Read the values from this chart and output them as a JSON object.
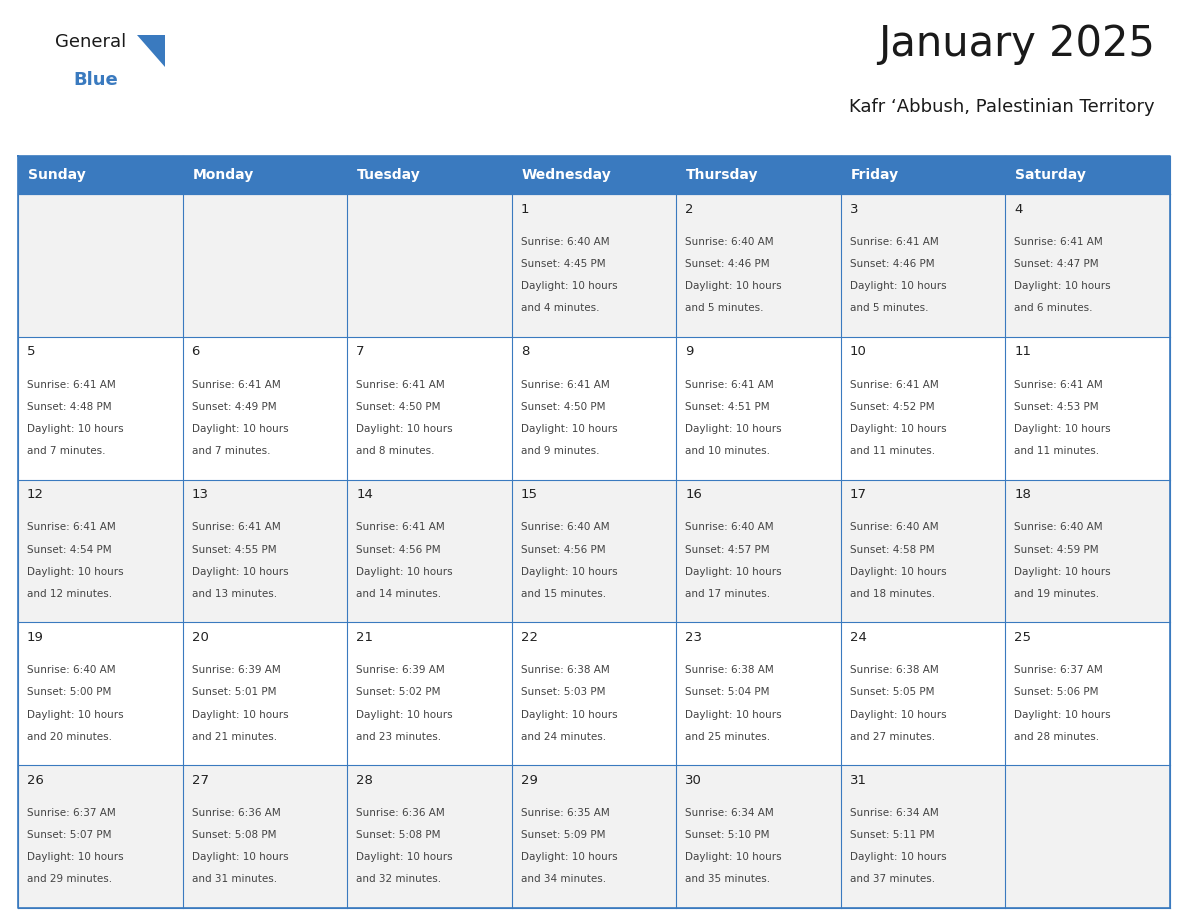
{
  "title": "January 2025",
  "subtitle": "Kafr ‘Abbush, Palestinian Territory",
  "header_color": "#3a7abf",
  "header_text_color": "#ffffff",
  "row0_bg": "#f2f2f2",
  "row1_bg": "#ffffff",
  "border_color": "#3a7abf",
  "text_color": "#444444",
  "day_num_color": "#222222",
  "day_headers": [
    "Sunday",
    "Monday",
    "Tuesday",
    "Wednesday",
    "Thursday",
    "Friday",
    "Saturday"
  ],
  "days_data": [
    {
      "day": 1,
      "col": 3,
      "row": 0,
      "sunrise": "6:40 AM",
      "sunset": "4:45 PM",
      "dl1": "Daylight: 10 hours",
      "dl2": "and 4 minutes."
    },
    {
      "day": 2,
      "col": 4,
      "row": 0,
      "sunrise": "6:40 AM",
      "sunset": "4:46 PM",
      "dl1": "Daylight: 10 hours",
      "dl2": "and 5 minutes."
    },
    {
      "day": 3,
      "col": 5,
      "row": 0,
      "sunrise": "6:41 AM",
      "sunset": "4:46 PM",
      "dl1": "Daylight: 10 hours",
      "dl2": "and 5 minutes."
    },
    {
      "day": 4,
      "col": 6,
      "row": 0,
      "sunrise": "6:41 AM",
      "sunset": "4:47 PM",
      "dl1": "Daylight: 10 hours",
      "dl2": "and 6 minutes."
    },
    {
      "day": 5,
      "col": 0,
      "row": 1,
      "sunrise": "6:41 AM",
      "sunset": "4:48 PM",
      "dl1": "Daylight: 10 hours",
      "dl2": "and 7 minutes."
    },
    {
      "day": 6,
      "col": 1,
      "row": 1,
      "sunrise": "6:41 AM",
      "sunset": "4:49 PM",
      "dl1": "Daylight: 10 hours",
      "dl2": "and 7 minutes."
    },
    {
      "day": 7,
      "col": 2,
      "row": 1,
      "sunrise": "6:41 AM",
      "sunset": "4:50 PM",
      "dl1": "Daylight: 10 hours",
      "dl2": "and 8 minutes."
    },
    {
      "day": 8,
      "col": 3,
      "row": 1,
      "sunrise": "6:41 AM",
      "sunset": "4:50 PM",
      "dl1": "Daylight: 10 hours",
      "dl2": "and 9 minutes."
    },
    {
      "day": 9,
      "col": 4,
      "row": 1,
      "sunrise": "6:41 AM",
      "sunset": "4:51 PM",
      "dl1": "Daylight: 10 hours",
      "dl2": "and 10 minutes."
    },
    {
      "day": 10,
      "col": 5,
      "row": 1,
      "sunrise": "6:41 AM",
      "sunset": "4:52 PM",
      "dl1": "Daylight: 10 hours",
      "dl2": "and 11 minutes."
    },
    {
      "day": 11,
      "col": 6,
      "row": 1,
      "sunrise": "6:41 AM",
      "sunset": "4:53 PM",
      "dl1": "Daylight: 10 hours",
      "dl2": "and 11 minutes."
    },
    {
      "day": 12,
      "col": 0,
      "row": 2,
      "sunrise": "6:41 AM",
      "sunset": "4:54 PM",
      "dl1": "Daylight: 10 hours",
      "dl2": "and 12 minutes."
    },
    {
      "day": 13,
      "col": 1,
      "row": 2,
      "sunrise": "6:41 AM",
      "sunset": "4:55 PM",
      "dl1": "Daylight: 10 hours",
      "dl2": "and 13 minutes."
    },
    {
      "day": 14,
      "col": 2,
      "row": 2,
      "sunrise": "6:41 AM",
      "sunset": "4:56 PM",
      "dl1": "Daylight: 10 hours",
      "dl2": "and 14 minutes."
    },
    {
      "day": 15,
      "col": 3,
      "row": 2,
      "sunrise": "6:40 AM",
      "sunset": "4:56 PM",
      "dl1": "Daylight: 10 hours",
      "dl2": "and 15 minutes."
    },
    {
      "day": 16,
      "col": 4,
      "row": 2,
      "sunrise": "6:40 AM",
      "sunset": "4:57 PM",
      "dl1": "Daylight: 10 hours",
      "dl2": "and 17 minutes."
    },
    {
      "day": 17,
      "col": 5,
      "row": 2,
      "sunrise": "6:40 AM",
      "sunset": "4:58 PM",
      "dl1": "Daylight: 10 hours",
      "dl2": "and 18 minutes."
    },
    {
      "day": 18,
      "col": 6,
      "row": 2,
      "sunrise": "6:40 AM",
      "sunset": "4:59 PM",
      "dl1": "Daylight: 10 hours",
      "dl2": "and 19 minutes."
    },
    {
      "day": 19,
      "col": 0,
      "row": 3,
      "sunrise": "6:40 AM",
      "sunset": "5:00 PM",
      "dl1": "Daylight: 10 hours",
      "dl2": "and 20 minutes."
    },
    {
      "day": 20,
      "col": 1,
      "row": 3,
      "sunrise": "6:39 AM",
      "sunset": "5:01 PM",
      "dl1": "Daylight: 10 hours",
      "dl2": "and 21 minutes."
    },
    {
      "day": 21,
      "col": 2,
      "row": 3,
      "sunrise": "6:39 AM",
      "sunset": "5:02 PM",
      "dl1": "Daylight: 10 hours",
      "dl2": "and 23 minutes."
    },
    {
      "day": 22,
      "col": 3,
      "row": 3,
      "sunrise": "6:38 AM",
      "sunset": "5:03 PM",
      "dl1": "Daylight: 10 hours",
      "dl2": "and 24 minutes."
    },
    {
      "day": 23,
      "col": 4,
      "row": 3,
      "sunrise": "6:38 AM",
      "sunset": "5:04 PM",
      "dl1": "Daylight: 10 hours",
      "dl2": "and 25 minutes."
    },
    {
      "day": 24,
      "col": 5,
      "row": 3,
      "sunrise": "6:38 AM",
      "sunset": "5:05 PM",
      "dl1": "Daylight: 10 hours",
      "dl2": "and 27 minutes."
    },
    {
      "day": 25,
      "col": 6,
      "row": 3,
      "sunrise": "6:37 AM",
      "sunset": "5:06 PM",
      "dl1": "Daylight: 10 hours",
      "dl2": "and 28 minutes."
    },
    {
      "day": 26,
      "col": 0,
      "row": 4,
      "sunrise": "6:37 AM",
      "sunset": "5:07 PM",
      "dl1": "Daylight: 10 hours",
      "dl2": "and 29 minutes."
    },
    {
      "day": 27,
      "col": 1,
      "row": 4,
      "sunrise": "6:36 AM",
      "sunset": "5:08 PM",
      "dl1": "Daylight: 10 hours",
      "dl2": "and 31 minutes."
    },
    {
      "day": 28,
      "col": 2,
      "row": 4,
      "sunrise": "6:36 AM",
      "sunset": "5:08 PM",
      "dl1": "Daylight: 10 hours",
      "dl2": "and 32 minutes."
    },
    {
      "day": 29,
      "col": 3,
      "row": 4,
      "sunrise": "6:35 AM",
      "sunset": "5:09 PM",
      "dl1": "Daylight: 10 hours",
      "dl2": "and 34 minutes."
    },
    {
      "day": 30,
      "col": 4,
      "row": 4,
      "sunrise": "6:34 AM",
      "sunset": "5:10 PM",
      "dl1": "Daylight: 10 hours",
      "dl2": "and 35 minutes."
    },
    {
      "day": 31,
      "col": 5,
      "row": 4,
      "sunrise": "6:34 AM",
      "sunset": "5:11 PM",
      "dl1": "Daylight: 10 hours",
      "dl2": "and 37 minutes."
    }
  ],
  "num_rows": 5,
  "num_cols": 7,
  "logo_general_color": "#1a1a1a",
  "logo_blue_color": "#3a7abf",
  "figsize": [
    11.88,
    9.18
  ],
  "dpi": 100
}
